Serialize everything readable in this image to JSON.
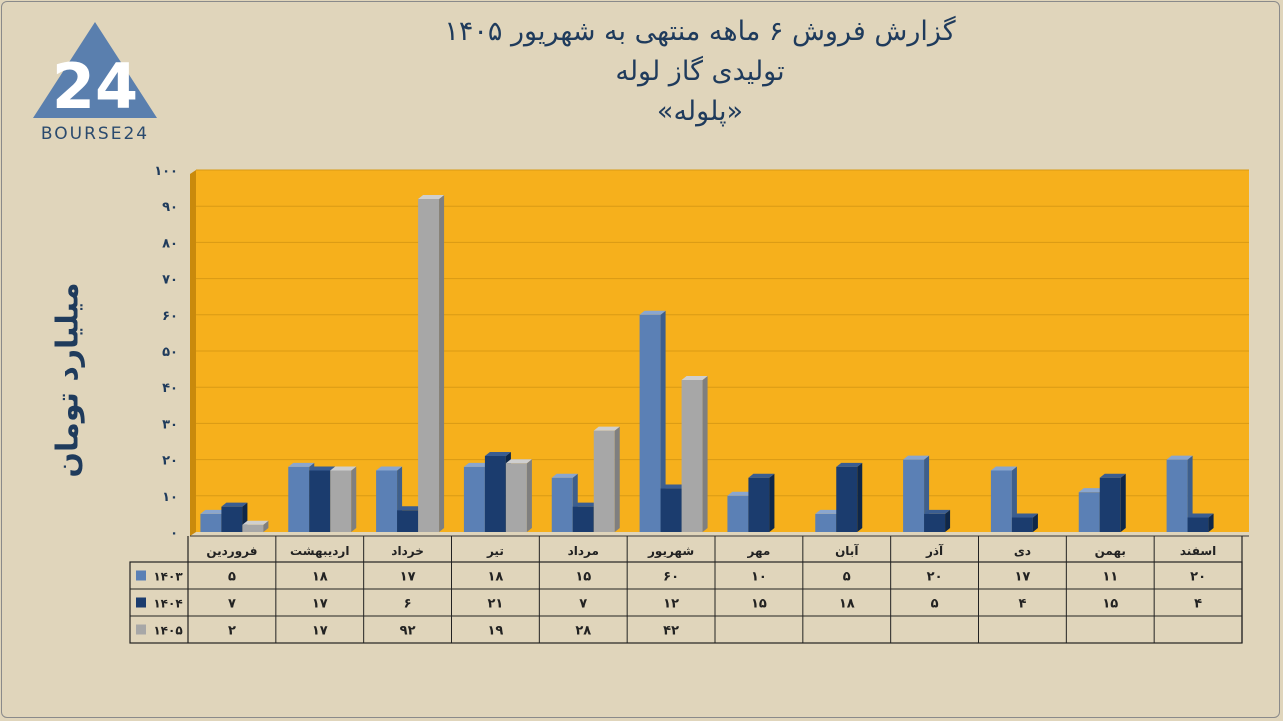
{
  "header": {
    "line1": "گزارش  فروش ۶ ماهه منتهی به شهریور ۱۴۰۵",
    "line2": "تولیدی گاز لوله",
    "line3": "«پلوله»"
  },
  "logo": {
    "text": "BOURSE24",
    "mark": "24"
  },
  "colors": {
    "s1403": "#5b80b5",
    "s1404": "#1b3c6e",
    "s1405": "#a7a7a7",
    "plot": "#f6b01c"
  },
  "chart_data": {
    "type": "bar",
    "title": "گزارش  فروش ۶ ماهه منتهی به شهریور ۱۴۰۵",
    "ylabel": "میلیارد تومان",
    "ylim": [
      0,
      100
    ],
    "yticks": [
      "۰",
      "۱۰",
      "۲۰",
      "۳۰",
      "۴۰",
      "۵۰",
      "۶۰",
      "۷۰",
      "۸۰",
      "۹۰",
      "۱۰۰"
    ],
    "grid": true,
    "categories": [
      "فروردین",
      "اردیبهشت",
      "خرداد",
      "تیر",
      "مرداد",
      "شهریور",
      "مهر",
      "آبان",
      "آذر",
      "دی",
      "بهمن",
      "اسفند"
    ],
    "series": [
      {
        "name": "۱۴۰۳",
        "values": [
          5,
          18,
          17,
          18,
          15,
          60,
          10,
          5,
          20,
          17,
          11,
          20
        ],
        "labels": [
          "۵",
          "۱۸",
          "۱۷",
          "۱۸",
          "۱۵",
          "۶۰",
          "۱۰",
          "۵",
          "۲۰",
          "۱۷",
          "۱۱",
          "۲۰"
        ]
      },
      {
        "name": "۱۴۰۴",
        "values": [
          7,
          17,
          6,
          21,
          7,
          12,
          15,
          18,
          5,
          4,
          15,
          4
        ],
        "labels": [
          "۷",
          "۱۷",
          "۶",
          "۲۱",
          "۷",
          "۱۲",
          "۱۵",
          "۱۸",
          "۵",
          "۴",
          "۱۵",
          "۴"
        ]
      },
      {
        "name": "۱۴۰۵",
        "values": [
          2,
          17,
          92,
          19,
          28,
          42,
          null,
          null,
          null,
          null,
          null,
          null
        ],
        "labels": [
          "۲",
          "۱۷",
          "۹۲",
          "۱۹",
          "۲۸",
          "۴۲",
          "",
          "",
          "",
          "",
          "",
          ""
        ]
      }
    ]
  }
}
